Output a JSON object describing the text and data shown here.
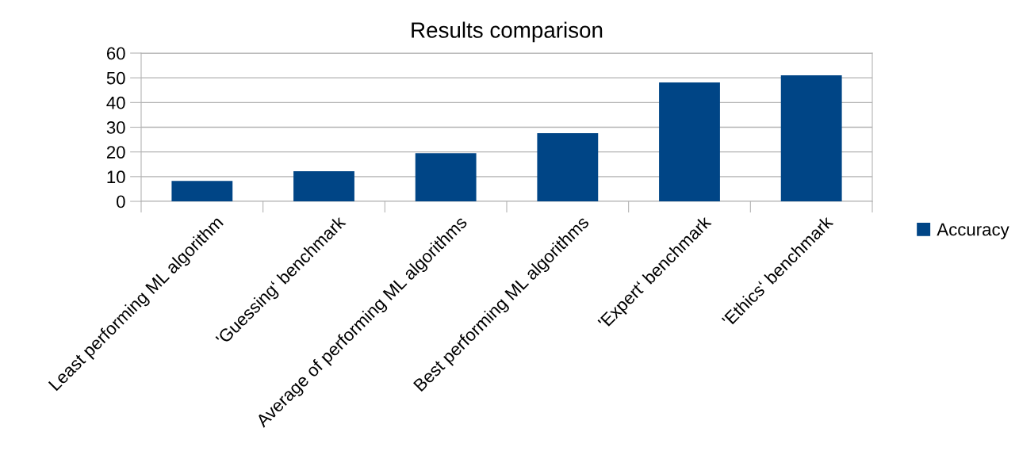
{
  "chart_data": {
    "type": "bar",
    "title": "Results comparison",
    "categories": [
      "Least performing ML algorithm",
      "'Guessing‘ benchmark",
      "Average of performing ML algorithms",
      "Best performing ML algorithms",
      "'Expert‘ benchmark",
      "'Ethics‘ benchmark"
    ],
    "series": [
      {
        "name": "Accuracy",
        "color": "#004586",
        "values": [
          8.3,
          12.2,
          19.5,
          27.6,
          48.1,
          51
        ]
      }
    ],
    "ylim": [
      0,
      60
    ],
    "yticks": [
      0,
      10,
      20,
      30,
      40,
      50,
      60
    ],
    "grid": "y",
    "legend": "right"
  }
}
